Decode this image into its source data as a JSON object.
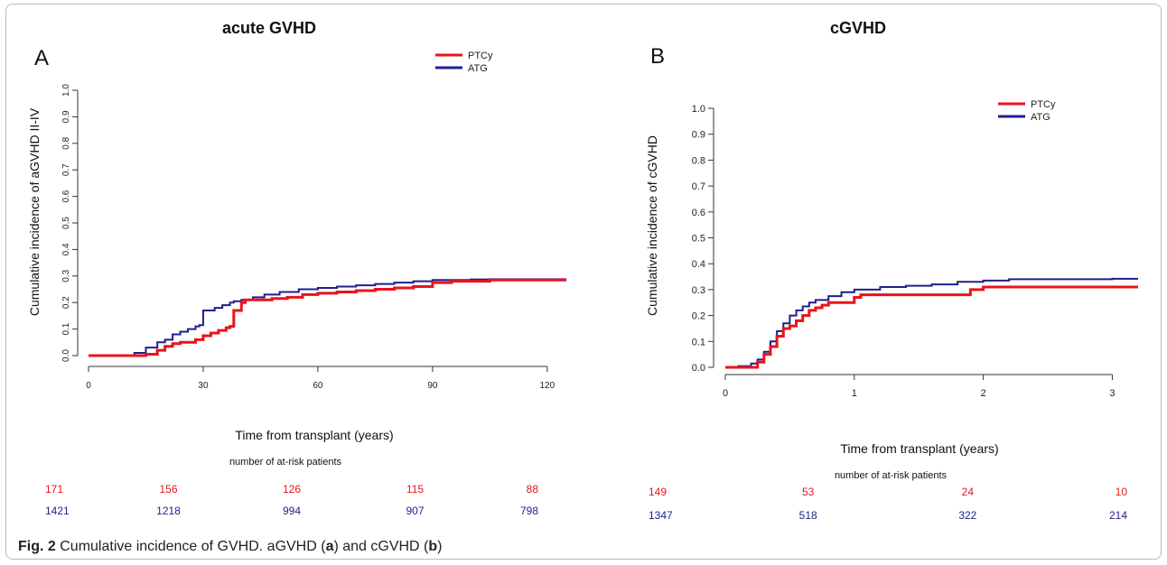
{
  "caption": {
    "fig_label": "Fig. 2",
    "text_1": "Cumulative incidence of GVHD. aGVHD (",
    "a": "a",
    "text_2": ") and cGVHD (",
    "b": "b",
    "text_3": ")"
  },
  "colors": {
    "PTCy": "#e8141c",
    "ATG": "#1f1f8c"
  },
  "chart_data": [
    {
      "type": "line",
      "panel_label": "A",
      "title": "acute GVHD",
      "xlabel": "Time from transplant (years)",
      "ylabel": "Cumulative incidence of aGVHD II-IV",
      "xlim": [
        0,
        125
      ],
      "ylim": [
        0,
        1.0
      ],
      "xticks": [
        0,
        30,
        60,
        90,
        120
      ],
      "yticks": [
        "0.0",
        "0.1",
        "0.2",
        "0.3",
        "0.4",
        "0.5",
        "0.6",
        "0.7",
        "0.8",
        "0.9",
        "1.0"
      ],
      "legend": [
        "PTCy",
        "ATG"
      ],
      "legend_position": "top-right",
      "series": [
        {
          "name": "PTCy",
          "x": [
            0,
            12,
            15,
            18,
            20,
            22,
            24,
            26,
            28,
            30,
            32,
            34,
            36,
            37,
            38,
            40,
            41,
            43,
            48,
            52,
            56,
            60,
            65,
            70,
            75,
            80,
            85,
            90,
            95,
            100,
            105,
            110,
            115,
            120,
            125
          ],
          "y": [
            0,
            0,
            0.005,
            0.02,
            0.035,
            0.045,
            0.05,
            0.05,
            0.06,
            0.075,
            0.085,
            0.095,
            0.105,
            0.11,
            0.17,
            0.2,
            0.21,
            0.21,
            0.215,
            0.22,
            0.23,
            0.235,
            0.24,
            0.245,
            0.25,
            0.255,
            0.26,
            0.275,
            0.28,
            0.28,
            0.285,
            0.285,
            0.285,
            0.285,
            0.285
          ]
        },
        {
          "name": "ATG",
          "x": [
            0,
            10,
            12,
            15,
            18,
            20,
            22,
            24,
            26,
            28,
            29,
            30,
            33,
            35,
            37,
            38,
            40,
            43,
            46,
            50,
            55,
            60,
            65,
            70,
            75,
            80,
            85,
            90,
            95,
            100,
            105,
            110,
            115,
            120,
            125
          ],
          "y": [
            0,
            0,
            0.01,
            0.03,
            0.05,
            0.06,
            0.08,
            0.09,
            0.1,
            0.11,
            0.115,
            0.17,
            0.18,
            0.19,
            0.2,
            0.205,
            0.21,
            0.22,
            0.23,
            0.24,
            0.25,
            0.255,
            0.26,
            0.265,
            0.27,
            0.275,
            0.28,
            0.285,
            0.285,
            0.287,
            0.288,
            0.288,
            0.288,
            0.288,
            0.288
          ]
        }
      ],
      "risk_table": {
        "title": "number of at-risk patients",
        "times": [
          0,
          30,
          60,
          90,
          120
        ],
        "rows": [
          {
            "name": "PTCy",
            "values": [
              "171",
              "156",
              "126",
              "115",
              "88"
            ]
          },
          {
            "name": "ATG",
            "values": [
              "1421",
              "1218",
              "994",
              "907",
              "798"
            ]
          }
        ]
      }
    },
    {
      "type": "line",
      "panel_label": "B",
      "title": "cGVHD",
      "xlabel": "Time from transplant (years)",
      "ylabel": "Cumulative incidence of cGVHD",
      "xlim": [
        0,
        3.2
      ],
      "ylim": [
        0,
        1.0
      ],
      "xticks": [
        0,
        1,
        2,
        3
      ],
      "yticks": [
        "0.0",
        "0.1",
        "0.2",
        "0.3",
        "0.4",
        "0.5",
        "0.6",
        "0.7",
        "0.8",
        "0.9",
        "1.0"
      ],
      "legend": [
        "PTCy",
        "ATG"
      ],
      "legend_position": "top-right",
      "series": [
        {
          "name": "PTCy",
          "x": [
            0,
            0.2,
            0.25,
            0.3,
            0.35,
            0.4,
            0.45,
            0.5,
            0.55,
            0.6,
            0.65,
            0.7,
            0.75,
            0.8,
            0.9,
            1.0,
            1.05,
            1.2,
            1.5,
            1.7,
            1.9,
            2.0,
            2.5,
            3.0,
            3.2
          ],
          "y": [
            0,
            0,
            0.02,
            0.05,
            0.08,
            0.12,
            0.15,
            0.16,
            0.18,
            0.2,
            0.22,
            0.23,
            0.24,
            0.25,
            0.25,
            0.27,
            0.28,
            0.28,
            0.28,
            0.28,
            0.3,
            0.31,
            0.31,
            0.31,
            0.31
          ]
        },
        {
          "name": "ATG",
          "x": [
            0,
            0.1,
            0.2,
            0.25,
            0.3,
            0.35,
            0.4,
            0.45,
            0.5,
            0.55,
            0.6,
            0.65,
            0.7,
            0.8,
            0.9,
            1.0,
            1.2,
            1.4,
            1.6,
            1.8,
            2.0,
            2.2,
            2.5,
            3.0,
            3.2
          ],
          "y": [
            0,
            0.005,
            0.015,
            0.03,
            0.06,
            0.1,
            0.14,
            0.17,
            0.2,
            0.22,
            0.235,
            0.25,
            0.26,
            0.275,
            0.29,
            0.3,
            0.31,
            0.315,
            0.32,
            0.33,
            0.335,
            0.34,
            0.34,
            0.342,
            0.342
          ]
        }
      ],
      "risk_table": {
        "title": "number of at-risk patients",
        "times": [
          0,
          1,
          2,
          3
        ],
        "rows": [
          {
            "name": "PTCy",
            "values": [
              "149",
              "53",
              "24",
              "10"
            ]
          },
          {
            "name": "ATG",
            "values": [
              "1347",
              "518",
              "322",
              "214"
            ]
          }
        ]
      }
    }
  ]
}
